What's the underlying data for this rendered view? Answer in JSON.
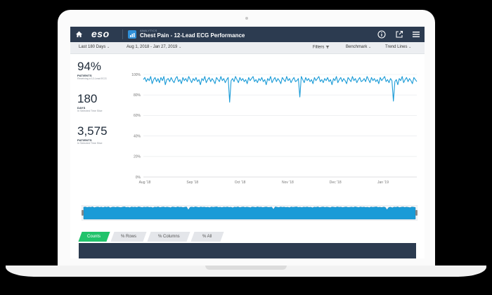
{
  "header": {
    "logo": "eso",
    "app_subtitle": "ANALYTICS",
    "app_title": "Chest Pain - 12-Lead ECG Performance"
  },
  "filters": {
    "range": "Last 180 Days",
    "dates": "Aug 1, 2018  -  Jan 27, 2019",
    "filters_label": "Filters",
    "benchmark_label": "Benchmark",
    "trend_label": "Trend Lines"
  },
  "stats": [
    {
      "value": "94%",
      "label": "PATIENTS",
      "sub": "Receiving a 12-Lead ECG"
    },
    {
      "value": "180",
      "label": "DAYS",
      "sub": "In Selected Time Slice"
    },
    {
      "value": "3,575",
      "label": "PATIENTS",
      "sub": "In Selected Time Slice"
    }
  ],
  "tabs": [
    "Counts",
    "% Rows",
    "% Columns",
    "% All"
  ],
  "colors": {
    "accent": "#1a9bd7",
    "header": "#2c3b50",
    "active_tab": "#21c36b"
  },
  "chart_data": {
    "type": "line",
    "ylim": [
      0,
      100
    ],
    "y_ticks": [
      "0%",
      "20%",
      "40%",
      "60%",
      "80%",
      "100%"
    ],
    "y_tick_values": [
      0,
      20,
      40,
      60,
      80,
      100
    ],
    "x_ticks": [
      "Aug '18",
      "Sep '18",
      "Oct '18",
      "Nov '18",
      "Dec '18",
      "Jan '19"
    ],
    "grid": true,
    "values": [
      95,
      97,
      93,
      96,
      94,
      98,
      91,
      95,
      97,
      93,
      96,
      92,
      97,
      94,
      98,
      90,
      95,
      96,
      93,
      97,
      94,
      92,
      96,
      98,
      93,
      95,
      91,
      97,
      94,
      96,
      93,
      98,
      95,
      92,
      96,
      94,
      97,
      93,
      95,
      90,
      96,
      94,
      98,
      92,
      95,
      97,
      93,
      96,
      94,
      91,
      97,
      95,
      93,
      98,
      94,
      96,
      92,
      95,
      97,
      73,
      94,
      96,
      93,
      98,
      95,
      92,
      97,
      94,
      96,
      93,
      95,
      91,
      97,
      94,
      96,
      98,
      93,
      95,
      92,
      96,
      94,
      97,
      93,
      95,
      90,
      96,
      94,
      98,
      92,
      95,
      97,
      93,
      96,
      94,
      91,
      97,
      95,
      93,
      98,
      94,
      96,
      92,
      95,
      97,
      93,
      94,
      96,
      78,
      98,
      95,
      92,
      97,
      94,
      96,
      93,
      95,
      91,
      97,
      94,
      96,
      98,
      93,
      95,
      92,
      96,
      94,
      97,
      93,
      95,
      90,
      96,
      94,
      98,
      92,
      95,
      97,
      93,
      96,
      94,
      91,
      97,
      95,
      93,
      98,
      94,
      96,
      92,
      95,
      97,
      93,
      94,
      96,
      93,
      98,
      95,
      92,
      97,
      94,
      96,
      93,
      95,
      91,
      97,
      94,
      96,
      98,
      93,
      95,
      92,
      96,
      94,
      74,
      93,
      95,
      90,
      96,
      94,
      98,
      92,
      95,
      97,
      93,
      96,
      94,
      91,
      97,
      95,
      93
    ]
  }
}
